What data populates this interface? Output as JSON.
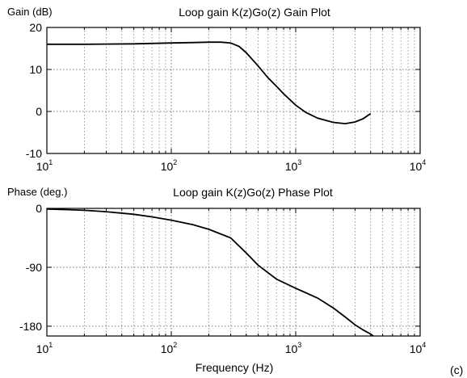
{
  "figure": {
    "corner_label": "(c)"
  },
  "chart_data": [
    {
      "type": "line",
      "title": "Loop gain K(z)Go(z) Gain Plot",
      "ylabel": "Gain (dB)",
      "xlabel": "",
      "xscale": "log",
      "xlim": [
        10,
        10000
      ],
      "ylim": [
        -10,
        20
      ],
      "xticks": [
        {
          "value": 10,
          "base": "10",
          "exp": "1"
        },
        {
          "value": 100,
          "base": "10",
          "exp": "2"
        },
        {
          "value": 1000,
          "base": "10",
          "exp": "3"
        },
        {
          "value": 10000,
          "base": "10",
          "exp": "4"
        }
      ],
      "yticks": [
        {
          "value": -10,
          "label": "-10"
        },
        {
          "value": 0,
          "label": "0"
        },
        {
          "value": 10,
          "label": "10"
        },
        {
          "value": 20,
          "label": "20"
        }
      ],
      "grid": true,
      "series": [
        {
          "x": [
            10,
            20,
            50,
            100,
            150,
            200,
            250,
            300,
            350,
            400,
            500,
            600,
            700,
            800,
            1000,
            1200,
            1500,
            2000,
            2500,
            3000,
            3500,
            4000
          ],
          "y": [
            16,
            16,
            16.1,
            16.3,
            16.4,
            16.5,
            16.5,
            16.3,
            15.5,
            14,
            10.8,
            8,
            6,
            4.2,
            1.5,
            -0.2,
            -1.6,
            -2.6,
            -2.9,
            -2.5,
            -1.7,
            -0.5
          ]
        }
      ]
    },
    {
      "type": "line",
      "title": "Loop gain K(z)Go(z) Phase Plot",
      "ylabel": "Phase (deg.)",
      "xlabel": "Frequency (Hz)",
      "xscale": "log",
      "xlim": [
        10,
        10000
      ],
      "ylim": [
        -195,
        0
      ],
      "xticks": [
        {
          "value": 10,
          "base": "10",
          "exp": "1"
        },
        {
          "value": 100,
          "base": "10",
          "exp": "2"
        },
        {
          "value": 1000,
          "base": "10",
          "exp": "3"
        },
        {
          "value": 10000,
          "base": "10",
          "exp": "4"
        }
      ],
      "yticks": [
        {
          "value": 0,
          "label": "0"
        },
        {
          "value": -90,
          "label": "-90"
        },
        {
          "value": -180,
          "label": "-180"
        }
      ],
      "grid": true,
      "series": [
        {
          "x": [
            10,
            15,
            20,
            30,
            50,
            70,
            100,
            150,
            200,
            300,
            400,
            500,
            700,
            1000,
            1500,
            2000,
            2500,
            3000,
            3500,
            4000,
            4200
          ],
          "y": [
            -1,
            -2,
            -3,
            -5,
            -9,
            -13,
            -18,
            -25,
            -32,
            -45,
            -68,
            -87,
            -108,
            -122,
            -137,
            -152,
            -166,
            -178,
            -186,
            -192,
            -195
          ]
        }
      ]
    }
  ]
}
